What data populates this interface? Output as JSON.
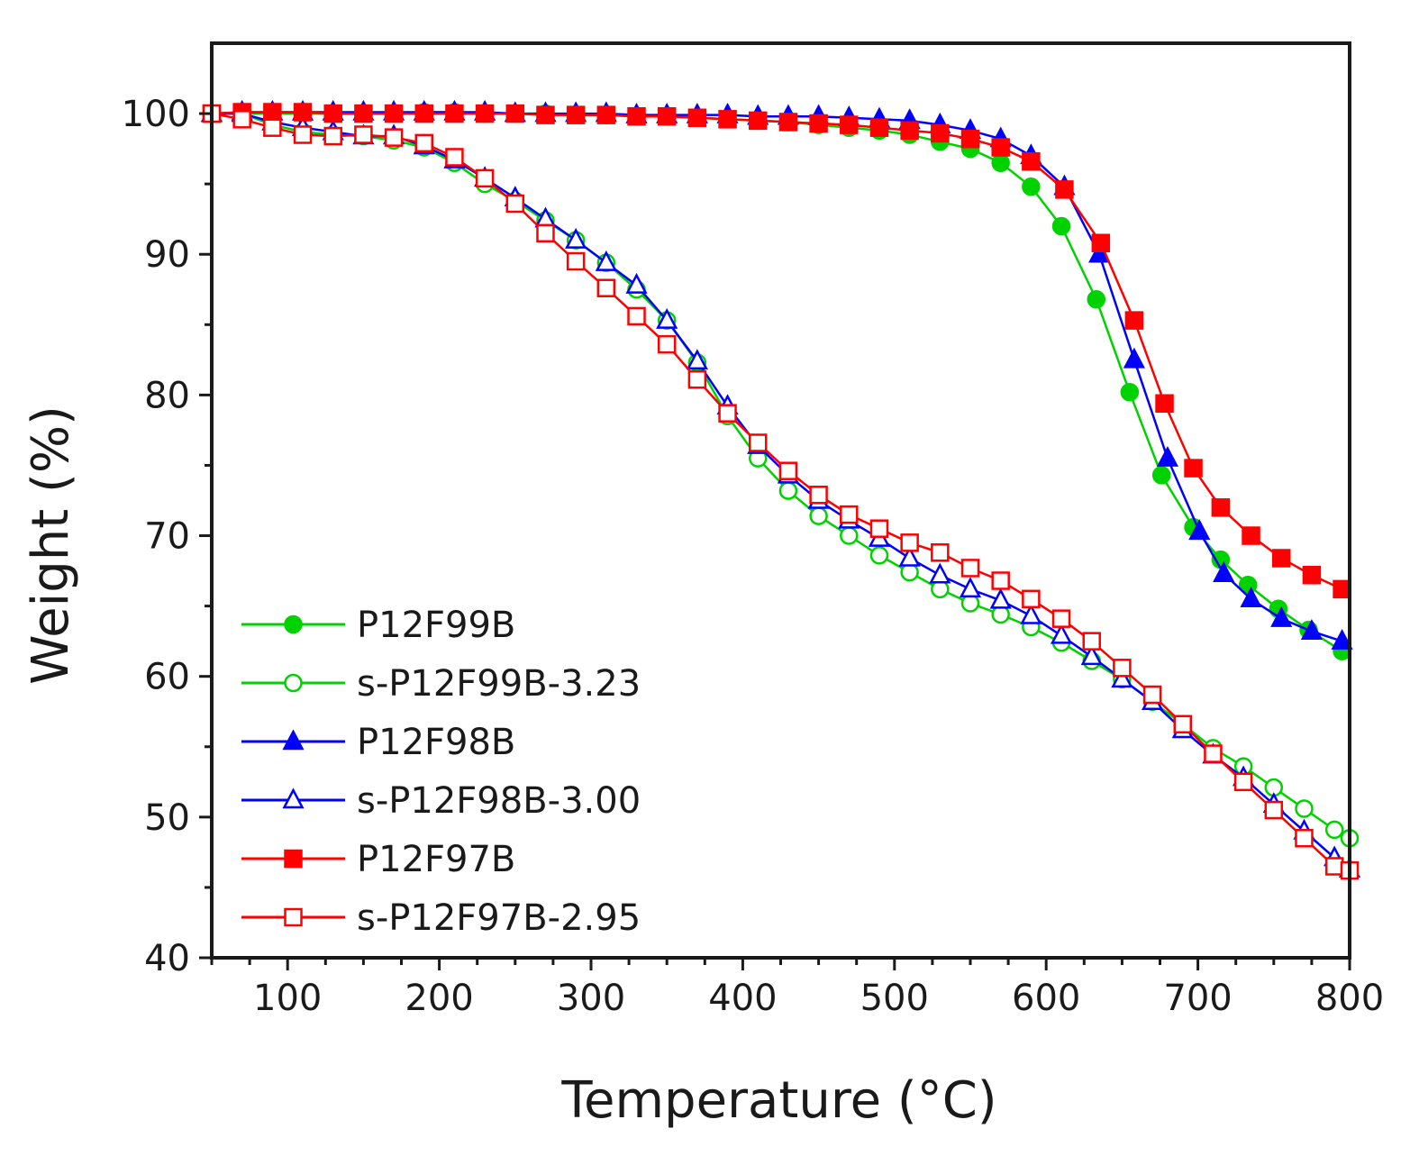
{
  "chart_data": {
    "type": "line",
    "title": "",
    "xlabel": "Temperature (°C)",
    "ylabel": "Weight (%)",
    "xlim": [
      50,
      800
    ],
    "ylim": [
      40,
      105
    ],
    "xticks": [
      100,
      200,
      300,
      400,
      500,
      600,
      700,
      800
    ],
    "yticks": [
      40,
      50,
      60,
      70,
      80,
      90,
      100
    ],
    "grid": false,
    "legend_position": "bottom-left",
    "series": [
      {
        "name": "P12F99B",
        "color": "#00d200",
        "marker": "circle",
        "filled": true,
        "x": [
          50,
          70,
          90,
          110,
          130,
          150,
          170,
          190,
          210,
          230,
          250,
          270,
          290,
          310,
          330,
          350,
          370,
          390,
          410,
          430,
          450,
          470,
          490,
          510,
          530,
          550,
          570,
          590,
          610,
          633,
          655,
          676,
          697,
          715,
          733,
          753,
          773,
          795
        ],
        "y": [
          100,
          100,
          100,
          100,
          100,
          100,
          100,
          100.1,
          100.1,
          100,
          100,
          100,
          99.9,
          99.9,
          99.8,
          99.8,
          99.7,
          99.6,
          99.5,
          99.4,
          99.2,
          99,
          98.8,
          98.5,
          98,
          97.5,
          96.5,
          94.8,
          92,
          86.8,
          80.2,
          74.3,
          70.6,
          68.3,
          66.5,
          64.8,
          63.3,
          61.8
        ]
      },
      {
        "name": "s-P12F99B-3.23",
        "color": "#00d200",
        "marker": "circle",
        "filled": false,
        "x": [
          50,
          70,
          90,
          110,
          130,
          150,
          170,
          190,
          210,
          230,
          250,
          270,
          290,
          310,
          330,
          350,
          370,
          390,
          410,
          430,
          450,
          470,
          490,
          510,
          530,
          550,
          570,
          590,
          610,
          630,
          650,
          670,
          690,
          710,
          730,
          750,
          770,
          790,
          800
        ],
        "y": [
          100,
          100,
          99.2,
          98.7,
          98.5,
          98.4,
          98.1,
          97.6,
          96.5,
          95,
          93.8,
          92.4,
          91,
          89.4,
          87.5,
          85.3,
          82.3,
          78.5,
          75.5,
          73.2,
          71.4,
          70,
          68.6,
          67.4,
          66.2,
          65.2,
          64.4,
          63.5,
          62.4,
          61.1,
          59.8,
          58.2,
          56.6,
          54.9,
          53.6,
          52.1,
          50.6,
          49.1,
          48.5
        ]
      },
      {
        "name": "P12F98B",
        "color": "#0000ff",
        "marker": "triangle",
        "filled": true,
        "x": [
          50,
          70,
          90,
          110,
          130,
          150,
          170,
          190,
          210,
          230,
          250,
          270,
          290,
          310,
          330,
          350,
          370,
          390,
          410,
          430,
          450,
          470,
          490,
          510,
          530,
          550,
          570,
          590,
          612,
          635,
          658,
          680,
          701,
          717,
          735,
          755,
          775,
          795
        ],
        "y": [
          100,
          100.1,
          100.1,
          100.1,
          100.1,
          100.1,
          100.1,
          100.1,
          100.1,
          100.1,
          100,
          100,
          100,
          100,
          99.9,
          99.9,
          99.9,
          99.9,
          99.8,
          99.8,
          99.8,
          99.7,
          99.6,
          99.5,
          99.2,
          98.8,
          98.2,
          97,
          94.8,
          90,
          82.5,
          75.5,
          70.3,
          67.3,
          65.5,
          64.1,
          63.2,
          62.5
        ]
      },
      {
        "name": "s-P12F98B-3.00",
        "color": "#0000ff",
        "marker": "triangle",
        "filled": false,
        "x": [
          50,
          70,
          90,
          110,
          130,
          150,
          170,
          190,
          210,
          230,
          250,
          270,
          290,
          310,
          330,
          350,
          370,
          390,
          410,
          430,
          450,
          470,
          490,
          510,
          530,
          550,
          570,
          590,
          610,
          630,
          650,
          670,
          690,
          710,
          730,
          750,
          770,
          790,
          800
        ],
        "y": [
          100,
          100,
          99.4,
          99,
          98.7,
          98.4,
          98.4,
          97.7,
          96.7,
          95.4,
          94,
          92.5,
          91,
          89.4,
          87.8,
          85.3,
          82.4,
          79.2,
          76.4,
          74.3,
          72.5,
          71.1,
          69.8,
          68.4,
          67.2,
          66.2,
          65.4,
          64.3,
          62.9,
          61.4,
          59.8,
          58.2,
          56.2,
          54.4,
          52.8,
          50.9,
          49,
          47.1,
          46.3
        ]
      },
      {
        "name": "P12F97B",
        "color": "#ff0000",
        "marker": "square",
        "filled": true,
        "x": [
          50,
          70,
          90,
          110,
          130,
          150,
          170,
          190,
          210,
          230,
          250,
          270,
          290,
          310,
          330,
          350,
          370,
          390,
          410,
          430,
          450,
          470,
          490,
          510,
          530,
          550,
          570,
          590,
          612,
          636,
          658,
          678,
          697,
          715,
          735,
          755,
          775,
          795
        ],
        "y": [
          100,
          100.1,
          100.1,
          100.1,
          100,
          100,
          100,
          100,
          100,
          100,
          100,
          99.9,
          99.9,
          99.9,
          99.8,
          99.8,
          99.7,
          99.6,
          99.5,
          99.4,
          99.3,
          99.2,
          99,
          98.8,
          98.6,
          98.2,
          97.6,
          96.6,
          94.6,
          90.8,
          85.3,
          79.4,
          74.8,
          72,
          70,
          68.4,
          67.2,
          66.2
        ]
      },
      {
        "name": "s-P12F97B-2.95",
        "color": "#ff0000",
        "marker": "square",
        "filled": false,
        "x": [
          50,
          70,
          90,
          110,
          130,
          150,
          170,
          190,
          210,
          230,
          250,
          270,
          290,
          310,
          330,
          350,
          370,
          390,
          410,
          430,
          450,
          470,
          490,
          510,
          530,
          550,
          570,
          590,
          610,
          630,
          650,
          670,
          690,
          710,
          730,
          750,
          770,
          790,
          800
        ],
        "y": [
          100,
          99.6,
          99,
          98.5,
          98.4,
          98.5,
          98.3,
          97.9,
          96.9,
          95.4,
          93.6,
          91.5,
          89.5,
          87.6,
          85.6,
          83.6,
          81.1,
          78.7,
          76.6,
          74.6,
          72.9,
          71.5,
          70.5,
          69.5,
          68.8,
          67.7,
          66.8,
          65.5,
          64.1,
          62.5,
          60.6,
          58.7,
          56.6,
          54.5,
          52.5,
          50.5,
          48.5,
          46.5,
          46.2
        ]
      }
    ]
  }
}
